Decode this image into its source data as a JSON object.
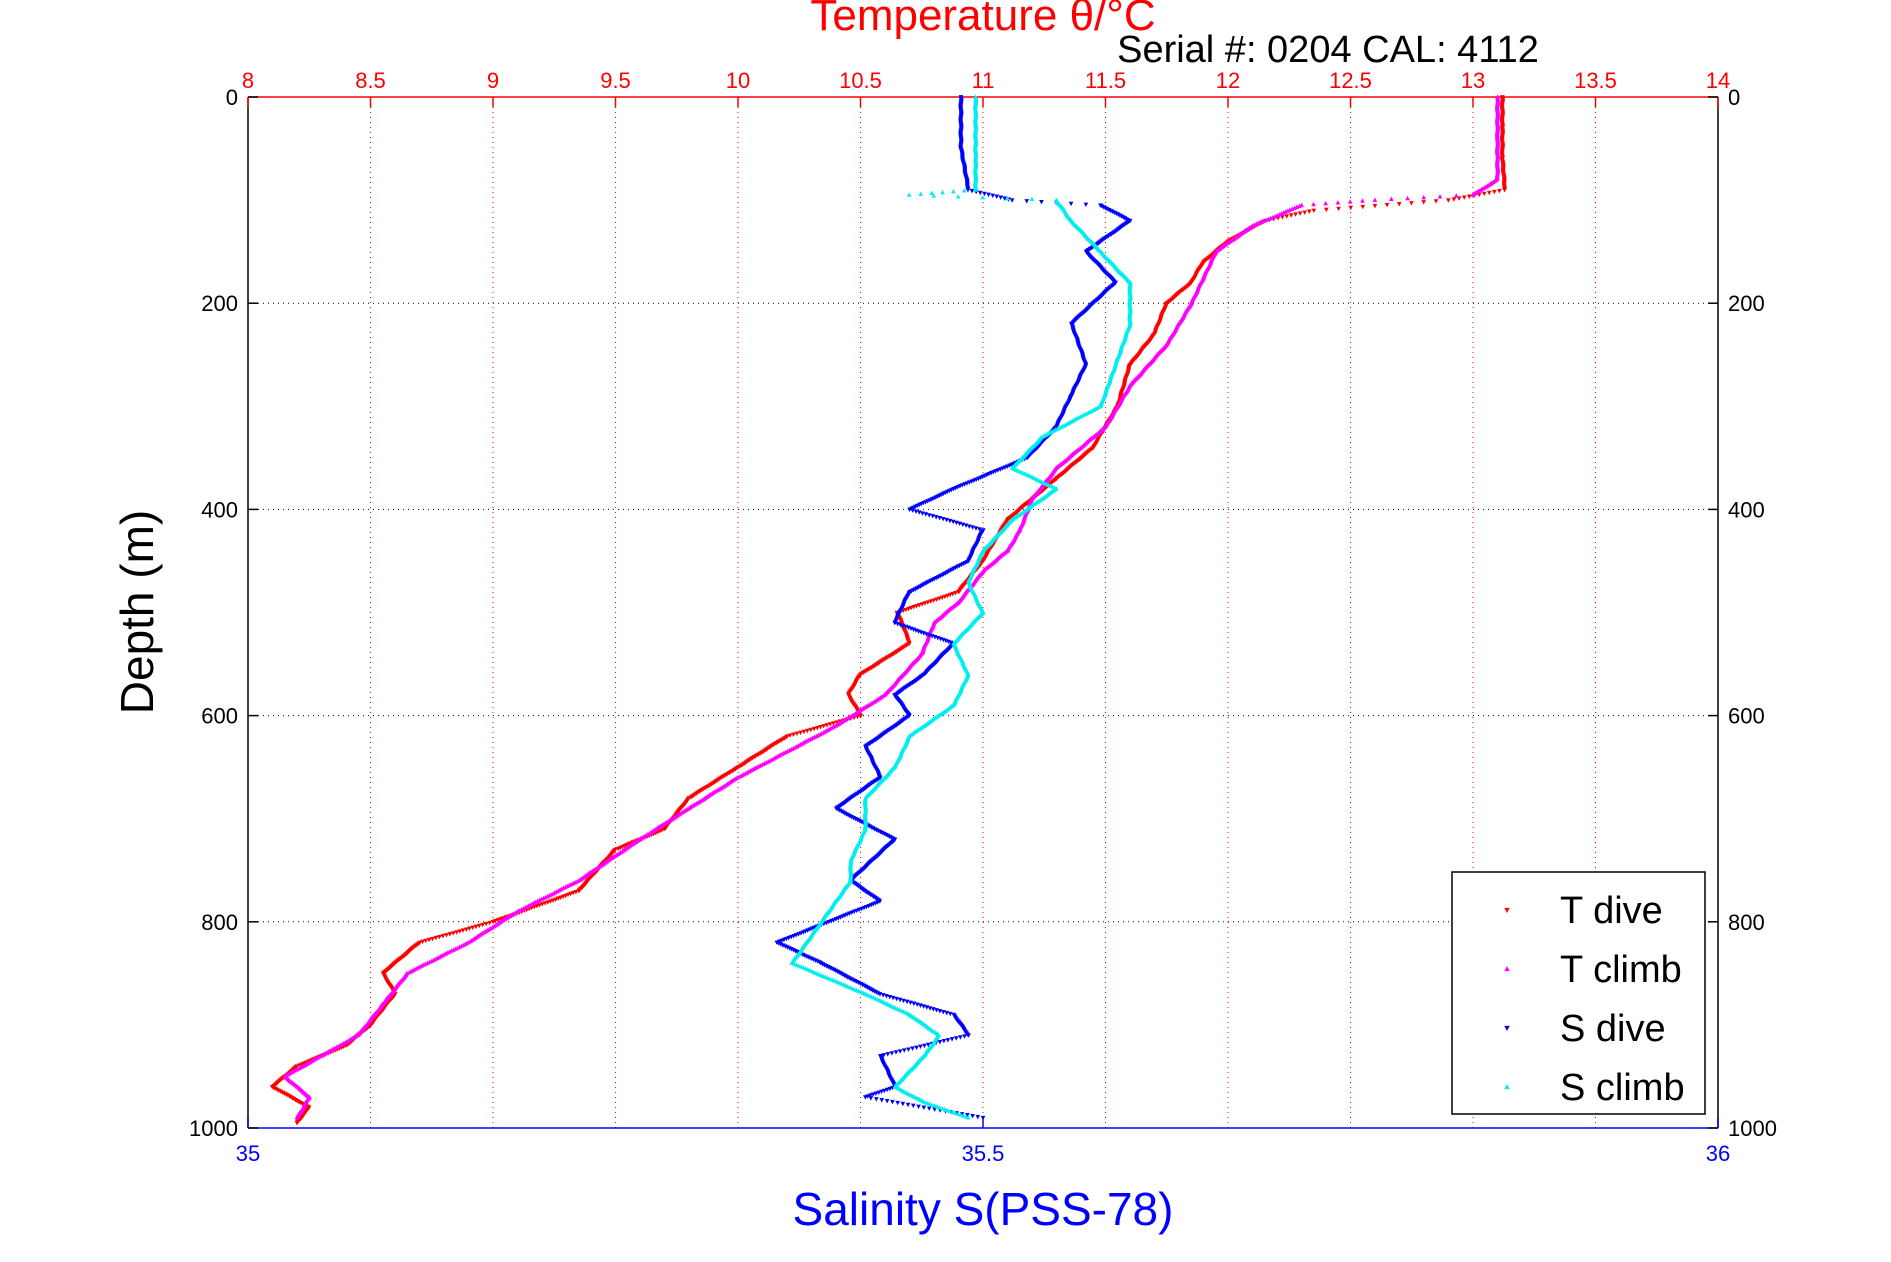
{
  "chart_data": {
    "type": "scatter",
    "title": "Temperature θ/°C",
    "subtitle": "Serial #: 0204  CAL: 4112",
    "ylabel": "Depth (m)",
    "x2label": "Salinity S(PSS-78)",
    "ylim": [
      0,
      1000
    ],
    "y_reversed": true,
    "temp_xlim": [
      8,
      14
    ],
    "sal_xlim": [
      35,
      36
    ],
    "grid": true,
    "legend_position": "bottom-right",
    "ticks": {
      "temp": [
        "8",
        "8.5",
        "9",
        "9.5",
        "10",
        "10.5",
        "11",
        "11.5",
        "12",
        "12.5",
        "13",
        "13.5",
        "14"
      ],
      "depth": [
        "0",
        "200",
        "400",
        "600",
        "800",
        "1000"
      ],
      "salinity": [
        "35",
        "35.5",
        "36"
      ]
    },
    "colors": {
      "temp_axis": "#ff0000",
      "sal_axis": "#0000ff",
      "grid_temp": "#ff0000",
      "grid_depth": "#000000"
    },
    "series": [
      {
        "name": "T dive",
        "axis": "temp",
        "color": "#ff0000",
        "marker": "triangle-down",
        "points": [
          [
            13.12,
            0
          ],
          [
            13.12,
            30
          ],
          [
            13.12,
            60
          ],
          [
            13.13,
            90
          ],
          [
            12.9,
            100
          ],
          [
            12.35,
            110
          ],
          [
            12.15,
            120
          ],
          [
            12.0,
            140
          ],
          [
            11.9,
            160
          ],
          [
            11.85,
            180
          ],
          [
            11.75,
            200
          ],
          [
            11.7,
            230
          ],
          [
            11.6,
            260
          ],
          [
            11.55,
            300
          ],
          [
            11.45,
            340
          ],
          [
            11.3,
            370
          ],
          [
            11.2,
            390
          ],
          [
            11.1,
            410
          ],
          [
            11.05,
            430
          ],
          [
            11.0,
            450
          ],
          [
            10.9,
            480
          ],
          [
            10.65,
            500
          ],
          [
            10.7,
            530
          ],
          [
            10.5,
            560
          ],
          [
            10.45,
            580
          ],
          [
            10.5,
            600
          ],
          [
            10.2,
            620
          ],
          [
            10.0,
            650
          ],
          [
            9.8,
            680
          ],
          [
            9.7,
            710
          ],
          [
            9.5,
            730
          ],
          [
            9.35,
            770
          ],
          [
            9.0,
            800
          ],
          [
            8.7,
            820
          ],
          [
            8.55,
            850
          ],
          [
            8.6,
            870
          ],
          [
            8.5,
            900
          ],
          [
            8.4,
            920
          ],
          [
            8.2,
            940
          ],
          [
            8.1,
            960
          ],
          [
            8.25,
            980
          ],
          [
            8.2,
            995
          ]
        ]
      },
      {
        "name": "T climb",
        "axis": "temp",
        "color": "#ff00ff",
        "marker": "triangle-up",
        "points": [
          [
            13.1,
            0
          ],
          [
            13.1,
            40
          ],
          [
            13.1,
            80
          ],
          [
            13.0,
            95
          ],
          [
            12.6,
            100
          ],
          [
            12.3,
            105
          ],
          [
            12.1,
            125
          ],
          [
            11.95,
            150
          ],
          [
            11.85,
            200
          ],
          [
            11.75,
            240
          ],
          [
            11.6,
            280
          ],
          [
            11.5,
            320
          ],
          [
            11.3,
            360
          ],
          [
            11.2,
            390
          ],
          [
            11.15,
            420
          ],
          [
            11.1,
            440
          ],
          [
            11.0,
            460
          ],
          [
            10.9,
            490
          ],
          [
            10.8,
            510
          ],
          [
            10.75,
            540
          ],
          [
            10.6,
            580
          ],
          [
            10.4,
            610
          ],
          [
            10.0,
            660
          ],
          [
            9.8,
            690
          ],
          [
            9.6,
            720
          ],
          [
            9.35,
            760
          ],
          [
            9.1,
            790
          ],
          [
            8.9,
            820
          ],
          [
            8.65,
            850
          ],
          [
            8.55,
            880
          ],
          [
            8.45,
            910
          ],
          [
            8.3,
            930
          ],
          [
            8.15,
            950
          ],
          [
            8.25,
            970
          ],
          [
            8.2,
            990
          ]
        ]
      },
      {
        "name": "S dive",
        "axis": "sal",
        "color": "#0000ff",
        "marker": "triangle-down",
        "points": [
          [
            35.485,
            0
          ],
          [
            35.485,
            50
          ],
          [
            35.49,
            90
          ],
          [
            35.52,
            100
          ],
          [
            35.58,
            105
          ],
          [
            35.6,
            120
          ],
          [
            35.57,
            150
          ],
          [
            35.59,
            180
          ],
          [
            35.56,
            220
          ],
          [
            35.57,
            260
          ],
          [
            35.56,
            290
          ],
          [
            35.55,
            320
          ],
          [
            35.53,
            350
          ],
          [
            35.48,
            380
          ],
          [
            35.45,
            400
          ],
          [
            35.5,
            420
          ],
          [
            35.49,
            450
          ],
          [
            35.45,
            480
          ],
          [
            35.44,
            510
          ],
          [
            35.48,
            530
          ],
          [
            35.46,
            560
          ],
          [
            35.44,
            580
          ],
          [
            35.45,
            600
          ],
          [
            35.42,
            630
          ],
          [
            35.43,
            660
          ],
          [
            35.4,
            690
          ],
          [
            35.44,
            720
          ],
          [
            35.41,
            760
          ],
          [
            35.43,
            780
          ],
          [
            35.36,
            820
          ],
          [
            35.39,
            840
          ],
          [
            35.43,
            870
          ],
          [
            35.48,
            890
          ],
          [
            35.49,
            910
          ],
          [
            35.43,
            930
          ],
          [
            35.44,
            960
          ],
          [
            35.42,
            970
          ],
          [
            35.5,
            990
          ]
        ]
      },
      {
        "name": "S climb",
        "axis": "sal",
        "color": "#00eeee",
        "marker": "triangle-up",
        "points": [
          [
            35.495,
            0
          ],
          [
            35.495,
            60
          ],
          [
            35.495,
            90
          ],
          [
            35.45,
            95
          ],
          [
            35.55,
            100
          ],
          [
            35.56,
            120
          ],
          [
            35.58,
            150
          ],
          [
            35.6,
            180
          ],
          [
            35.6,
            220
          ],
          [
            35.59,
            260
          ],
          [
            35.58,
            300
          ],
          [
            35.54,
            330
          ],
          [
            35.52,
            360
          ],
          [
            35.55,
            380
          ],
          [
            35.52,
            410
          ],
          [
            35.5,
            440
          ],
          [
            35.49,
            470
          ],
          [
            35.5,
            500
          ],
          [
            35.48,
            530
          ],
          [
            35.49,
            560
          ],
          [
            35.48,
            590
          ],
          [
            35.45,
            620
          ],
          [
            35.44,
            650
          ],
          [
            35.42,
            680
          ],
          [
            35.42,
            710
          ],
          [
            35.41,
            740
          ],
          [
            35.41,
            760
          ],
          [
            35.39,
            800
          ],
          [
            35.37,
            840
          ],
          [
            35.42,
            870
          ],
          [
            35.45,
            890
          ],
          [
            35.47,
            910
          ],
          [
            35.46,
            930
          ],
          [
            35.44,
            960
          ],
          [
            35.46,
            975
          ],
          [
            35.49,
            990
          ]
        ]
      }
    ]
  }
}
